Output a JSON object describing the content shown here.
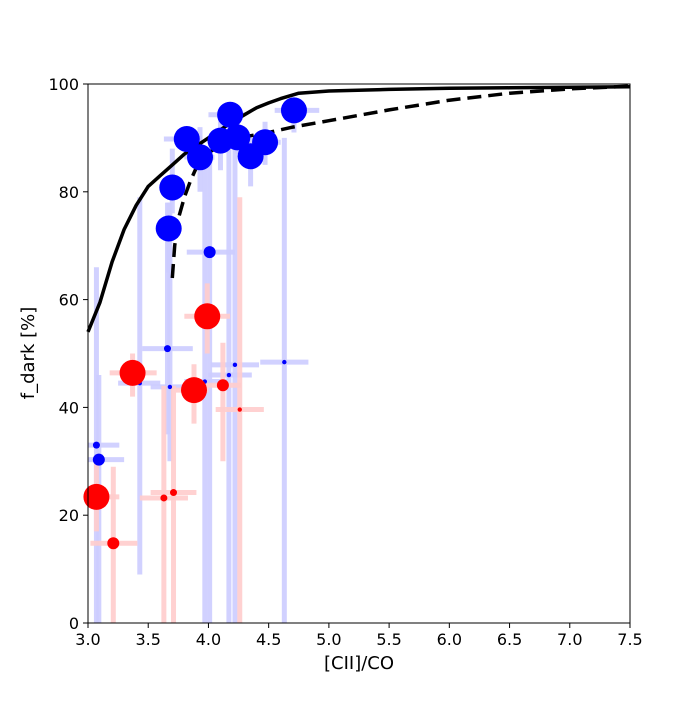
{
  "chart_data": {
    "type": "scatter",
    "xlabel": "[CII]/CO",
    "ylabel": "f_dark [%]",
    "xlim": [
      3.0,
      7.5
    ],
    "ylim": [
      0,
      100
    ],
    "xticks": [
      "3.0",
      "3.5",
      "4.0",
      "4.5",
      "5.0",
      "5.5",
      "6.0",
      "6.5",
      "7.0",
      "7.5"
    ],
    "yticks": [
      "0",
      "20",
      "40",
      "60",
      "80",
      "100"
    ],
    "grid": false,
    "colors": {
      "blue": "#0000ff",
      "red": "#ff0000",
      "blue_err": "#ccccff",
      "red_err": "#ffcccc",
      "curve": "#000000"
    },
    "series": [
      {
        "color": "blue",
        "points": [
          {
            "x": 3.67,
            "y": 73.2,
            "size": "large",
            "xerr": [
              3.63,
              3.77
            ],
            "yerr": [
              65,
              78
            ]
          },
          {
            "x": 3.7,
            "y": 80.8,
            "size": "large",
            "xerr": [
              3.63,
              3.8
            ],
            "yerr": [
              76,
              88
            ]
          },
          {
            "x": 3.82,
            "y": 89.8,
            "size": "large",
            "xerr": [
              3.63,
              3.95
            ],
            "yerr": [
              86,
              92
            ]
          },
          {
            "x": 3.93,
            "y": 86.4,
            "size": "large",
            "xerr": [
              3.85,
              4.05
            ],
            "yerr": [
              80,
              92
            ]
          },
          {
            "x": 4.1,
            "y": 89.5,
            "size": "large",
            "xerr": [
              4.0,
              4.25
            ],
            "yerr": [
              84,
              94
            ]
          },
          {
            "x": 4.18,
            "y": 94.3,
            "size": "large",
            "xerr": [
              4.0,
              4.3
            ],
            "yerr": [
              89,
              95
            ]
          },
          {
            "x": 4.24,
            "y": 90.1,
            "size": "large",
            "xerr": [
              4.15,
              4.35
            ],
            "yerr": [
              87,
              93
            ]
          },
          {
            "x": 4.35,
            "y": 86.6,
            "size": "large",
            "xerr": [
              4.25,
              4.45
            ],
            "yerr": [
              81,
              90
            ]
          },
          {
            "x": 4.47,
            "y": 89.2,
            "size": "large",
            "xerr": [
              4.35,
              4.6
            ],
            "yerr": [
              85,
              93
            ]
          },
          {
            "x": 4.71,
            "y": 95.1,
            "size": "large",
            "xerr": [
              4.55,
              4.92
            ],
            "yerr": [
              91,
              97
            ]
          },
          {
            "x": 4.01,
            "y": 68.8,
            "size": "medium",
            "xerr": [
              3.82,
              4.22
            ],
            "yerr": [
              0,
              88
            ]
          },
          {
            "x": 3.66,
            "y": 50.9,
            "size": "small",
            "xerr": [
              3.45,
              3.87
            ],
            "yerr": [
              35,
              78
            ]
          },
          {
            "x": 3.09,
            "y": 30.3,
            "size": "medium",
            "xerr": [
              3.0,
              3.3
            ],
            "yerr": [
              0,
              46
            ]
          },
          {
            "x": 3.07,
            "y": 33.0,
            "size": "small",
            "xerr": [
              3.0,
              3.26
            ],
            "yerr": [
              0,
              66
            ]
          },
          {
            "x": 3.43,
            "y": 44.5,
            "size": "tiny",
            "xerr": [
              3.25,
              3.6
            ],
            "yerr": [
              9,
              79
            ]
          },
          {
            "x": 3.68,
            "y": 43.8,
            "size": "tiny",
            "xerr": [
              3.52,
              3.84
            ],
            "yerr": [
              30,
              78
            ]
          },
          {
            "x": 3.97,
            "y": 44.8,
            "size": "tiny",
            "xerr": [
              3.8,
              4.15
            ],
            "yerr": [
              0,
              86
            ]
          },
          {
            "x": 4.17,
            "y": 46.0,
            "size": "tiny",
            "xerr": [
              4.0,
              4.36
            ],
            "yerr": [
              0,
              88
            ]
          },
          {
            "x": 4.22,
            "y": 47.9,
            "size": "tiny",
            "xerr": [
              4.02,
              4.42
            ],
            "yerr": [
              0,
              92
            ]
          },
          {
            "x": 4.63,
            "y": 48.4,
            "size": "tiny",
            "xerr": [
              4.43,
              4.83
            ],
            "yerr": [
              0,
              90
            ]
          }
        ]
      },
      {
        "color": "red",
        "points": [
          {
            "x": 3.99,
            "y": 56.9,
            "size": "large",
            "xerr": [
              3.8,
              4.18
            ],
            "yerr": [
              50,
              63
            ]
          },
          {
            "x": 3.37,
            "y": 46.4,
            "size": "large",
            "xerr": [
              3.18,
              3.57
            ],
            "yerr": [
              42,
              50
            ]
          },
          {
            "x": 3.88,
            "y": 43.2,
            "size": "large",
            "xerr": [
              3.73,
              4.0
            ],
            "yerr": [
              37,
              48
            ]
          },
          {
            "x": 4.12,
            "y": 44.1,
            "size": "medium",
            "xerr": [
              3.98,
              4.27
            ],
            "yerr": [
              30,
              52
            ]
          },
          {
            "x": 4.26,
            "y": 39.6,
            "size": "tiny",
            "xerr": [
              4.06,
              4.46
            ],
            "yerr": [
              0,
              79
            ]
          },
          {
            "x": 3.07,
            "y": 23.4,
            "size": "large",
            "xerr": [
              3.0,
              3.26
            ],
            "yerr": [
              17,
              30
            ]
          },
          {
            "x": 3.21,
            "y": 14.8,
            "size": "medium",
            "xerr": [
              3.02,
              3.41
            ],
            "yerr": [
              0,
              29
            ]
          },
          {
            "x": 3.71,
            "y": 24.2,
            "size": "small",
            "xerr": [
              3.52,
              3.9
            ],
            "yerr": [
              0,
              44
            ]
          },
          {
            "x": 3.63,
            "y": 23.2,
            "size": "small",
            "xerr": [
              3.43,
              3.83
            ],
            "yerr": [
              0,
              44
            ]
          }
        ]
      }
    ],
    "curves": [
      {
        "style": "solid",
        "x": [
          3.0,
          3.1,
          3.2,
          3.3,
          3.4,
          3.5,
          3.6,
          3.7,
          3.8,
          3.9,
          4.0,
          4.1,
          4.2,
          4.3,
          4.4,
          4.5,
          4.6,
          4.75,
          5.0,
          5.5,
          6.0,
          6.5,
          7.0,
          7.5
        ],
        "y": [
          54,
          59.5,
          67,
          73,
          77.5,
          81,
          83,
          85,
          87,
          88.5,
          90,
          91.5,
          93,
          94.3,
          95.6,
          96.5,
          97.3,
          98.3,
          98.7,
          99.0,
          99.2,
          99.3,
          99.4,
          99.5
        ]
      },
      {
        "style": "dashed",
        "x": [
          3.7,
          3.72,
          3.75,
          3.8,
          3.85,
          3.9,
          3.95,
          4.0,
          4.1,
          4.2,
          4.3,
          4.5,
          4.7,
          5.0,
          5.5,
          6.0,
          6.5,
          7.0,
          7.5
        ],
        "y": [
          64,
          70,
          75,
          79,
          82,
          84.5,
          86,
          87.3,
          88.5,
          89.5,
          90.2,
          91,
          92,
          93.2,
          95.2,
          97,
          98.3,
          99.1,
          99.6
        ]
      }
    ]
  }
}
